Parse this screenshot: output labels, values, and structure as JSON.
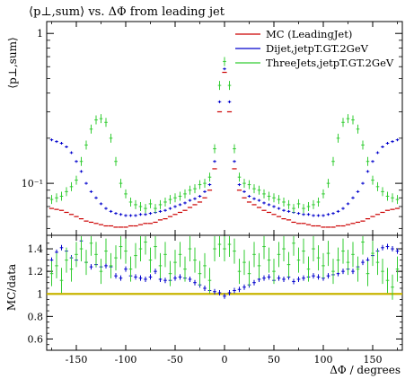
{
  "chart_data": [
    {
      "type": "scatter",
      "panel": "main",
      "title": "⟨p⊥,sum⟩ vs. ΔΦ from leading jet",
      "ylabel": "⟨p⊥,sum⟩",
      "yscale": "log",
      "xlim": [
        -180,
        180
      ],
      "ylim": [
        0.045,
        1.2
      ],
      "xticks": [
        -150,
        -100,
        -50,
        0,
        50,
        100,
        150
      ],
      "yticks": [
        {
          "value": 1,
          "label": "1"
        },
        {
          "value": 0.1,
          "label": "10⁻¹"
        }
      ],
      "legend_position": "top-right",
      "colors": {
        "mc": "#cc0000",
        "dijet": "#0000cc",
        "threejets": "#33cc33",
        "ref": "#c8b400"
      },
      "x": [
        -175,
        -170,
        -165,
        -160,
        -155,
        -150,
        -145,
        -140,
        -135,
        -130,
        -125,
        -120,
        -115,
        -110,
        -105,
        -100,
        -95,
        -90,
        -85,
        -80,
        -75,
        -70,
        -65,
        -60,
        -55,
        -50,
        -45,
        -40,
        -35,
        -30,
        -25,
        -20,
        -15,
        -10,
        -5,
        0,
        5,
        10,
        15,
        20,
        25,
        30,
        35,
        40,
        45,
        50,
        55,
        60,
        65,
        70,
        75,
        80,
        85,
        90,
        95,
        100,
        105,
        110,
        115,
        120,
        125,
        130,
        135,
        140,
        145,
        150,
        155,
        160,
        165,
        170,
        175
      ],
      "series": [
        {
          "name": "MC (LeadingJet)",
          "key": "mc",
          "values": [
            0.068,
            0.067,
            0.066,
            0.064,
            0.062,
            0.06,
            0.058,
            0.056,
            0.055,
            0.054,
            0.053,
            0.052,
            0.052,
            0.051,
            0.051,
            0.051,
            0.052,
            0.052,
            0.053,
            0.054,
            0.054,
            0.055,
            0.057,
            0.058,
            0.06,
            0.062,
            0.064,
            0.066,
            0.069,
            0.072,
            0.075,
            0.08,
            0.09,
            0.125,
            0.3,
            0.55,
            0.3,
            0.125,
            0.09,
            0.08,
            0.075,
            0.072,
            0.069,
            0.066,
            0.064,
            0.062,
            0.06,
            0.058,
            0.057,
            0.055,
            0.054,
            0.054,
            0.053,
            0.052,
            0.052,
            0.051,
            0.051,
            0.051,
            0.052,
            0.052,
            0.053,
            0.054,
            0.055,
            0.056,
            0.058,
            0.06,
            0.062,
            0.064,
            0.066,
            0.067,
            0.068
          ]
        },
        {
          "name": "Dijet,jetpT.GT.2GeV",
          "key": "dijet",
          "values": [
            0.195,
            0.19,
            0.185,
            0.175,
            0.16,
            0.14,
            0.12,
            0.1,
            0.088,
            0.08,
            0.073,
            0.068,
            0.065,
            0.063,
            0.062,
            0.061,
            0.061,
            0.061,
            0.062,
            0.062,
            0.063,
            0.064,
            0.065,
            0.066,
            0.068,
            0.07,
            0.072,
            0.074,
            0.077,
            0.079,
            0.082,
            0.088,
            0.098,
            0.14,
            0.35,
            0.58,
            0.35,
            0.14,
            0.098,
            0.088,
            0.082,
            0.079,
            0.077,
            0.074,
            0.072,
            0.07,
            0.068,
            0.066,
            0.065,
            0.064,
            0.063,
            0.062,
            0.062,
            0.061,
            0.061,
            0.061,
            0.062,
            0.063,
            0.065,
            0.068,
            0.073,
            0.08,
            0.088,
            0.1,
            0.12,
            0.14,
            0.16,
            0.175,
            0.185,
            0.19,
            0.195
          ]
        },
        {
          "name": "ThreeJets,jetpT.GT.2GeV",
          "key": "threejets",
          "values": [
            0.078,
            0.08,
            0.082,
            0.088,
            0.095,
            0.105,
            0.14,
            0.18,
            0.23,
            0.265,
            0.27,
            0.255,
            0.2,
            0.14,
            0.1,
            0.085,
            0.075,
            0.072,
            0.07,
            0.068,
            0.073,
            0.068,
            0.072,
            0.075,
            0.078,
            0.08,
            0.082,
            0.085,
            0.09,
            0.092,
            0.098,
            0.1,
            0.11,
            0.17,
            0.45,
            0.65,
            0.45,
            0.17,
            0.11,
            0.1,
            0.098,
            0.092,
            0.09,
            0.085,
            0.082,
            0.08,
            0.078,
            0.075,
            0.072,
            0.068,
            0.073,
            0.068,
            0.07,
            0.072,
            0.075,
            0.085,
            0.1,
            0.14,
            0.2,
            0.255,
            0.27,
            0.265,
            0.23,
            0.18,
            0.14,
            0.105,
            0.095,
            0.088,
            0.082,
            0.08,
            0.078
          ]
        }
      ]
    },
    {
      "type": "scatter",
      "panel": "ratio",
      "ylabel": "MC/data",
      "xlabel": "ΔΦ / degrees",
      "xlim": [
        -180,
        180
      ],
      "ylim": [
        0.5,
        1.52
      ],
      "xticks": [
        -150,
        -100,
        -50,
        0,
        50,
        100,
        150
      ],
      "yticks": [
        0.6,
        0.8,
        1,
        1.2,
        1.4
      ],
      "reference_line": 1,
      "x": [
        -175,
        -170,
        -165,
        -160,
        -155,
        -150,
        -145,
        -140,
        -135,
        -130,
        -125,
        -120,
        -115,
        -110,
        -105,
        -100,
        -95,
        -90,
        -85,
        -80,
        -75,
        -70,
        -65,
        -60,
        -55,
        -50,
        -45,
        -40,
        -35,
        -30,
        -25,
        -20,
        -15,
        -10,
        -5,
        0,
        5,
        10,
        15,
        20,
        25,
        30,
        35,
        40,
        45,
        50,
        55,
        60,
        65,
        70,
        75,
        80,
        85,
        90,
        95,
        100,
        105,
        110,
        115,
        120,
        125,
        130,
        135,
        140,
        145,
        150,
        155,
        160,
        165,
        170,
        175
      ],
      "series": [
        {
          "name": "Dijet,jetpT.GT.2GeV",
          "key": "dijet",
          "values": [
            1.3,
            1.37,
            1.41,
            1.38,
            1.32,
            1.3,
            1.47,
            1.28,
            1.24,
            1.26,
            1.24,
            1.25,
            1.24,
            1.16,
            1.14,
            1.22,
            1.16,
            1.15,
            1.14,
            1.13,
            1.15,
            1.2,
            1.13,
            1.12,
            1.12,
            1.14,
            1.15,
            1.14,
            1.13,
            1.1,
            1.08,
            1.05,
            1.03,
            1.02,
            1.01,
            0.98,
            1.01,
            1.03,
            1.04,
            1.06,
            1.08,
            1.1,
            1.13,
            1.14,
            1.15,
            1.12,
            1.14,
            1.13,
            1.15,
            1.11,
            1.13,
            1.14,
            1.15,
            1.16,
            1.15,
            1.14,
            1.16,
            1.17,
            1.18,
            1.2,
            1.22,
            1.2,
            1.24,
            1.28,
            1.3,
            1.34,
            1.38,
            1.41,
            1.42,
            1.4,
            1.38
          ]
        },
        {
          "name": "ThreeJets,jetpT.GT.2GeV",
          "key": "threejets",
          "values": [
            1.18,
            1.25,
            1.12,
            1.3,
            1.22,
            1.35,
            1.4,
            1.28,
            1.45,
            1.35,
            1.2,
            1.38,
            1.25,
            1.32,
            1.42,
            1.38,
            1.22,
            1.34,
            1.4,
            1.46,
            1.3,
            1.42,
            1.25,
            1.35,
            1.18,
            1.28,
            1.35,
            1.22,
            1.4,
            1.3,
            1.18,
            1.25,
            1.12,
            1.4,
            1.44,
            1.4,
            1.44,
            1.38,
            1.2,
            1.28,
            1.18,
            1.35,
            1.25,
            1.42,
            1.3,
            1.2,
            1.35,
            1.4,
            1.26,
            1.45,
            1.3,
            1.38,
            1.22,
            1.4,
            1.32,
            1.25,
            1.36,
            1.2,
            1.3,
            1.38,
            1.28,
            1.35,
            1.22,
            1.46,
            1.18,
            1.36,
            1.28,
            1.2,
            1.12,
            1.06,
            1.22
          ]
        },
        {
          "name": "MC (LeadingJet)",
          "key": "mc",
          "values": [
            1,
            1,
            1,
            1,
            1,
            1,
            1,
            1,
            1,
            1,
            1,
            1,
            1,
            1,
            1,
            1,
            1,
            1,
            1,
            1,
            1,
            1,
            1,
            1,
            1,
            1,
            1,
            1,
            1,
            1,
            1,
            1,
            1,
            1,
            1,
            1,
            1,
            1,
            1,
            1,
            1,
            1,
            1,
            1,
            1,
            1,
            1,
            1,
            1,
            1,
            1,
            1,
            1,
            1,
            1,
            1,
            1,
            1,
            1,
            1,
            1,
            1,
            1,
            1,
            1,
            1,
            1,
            1,
            1,
            1,
            1
          ]
        }
      ]
    }
  ]
}
